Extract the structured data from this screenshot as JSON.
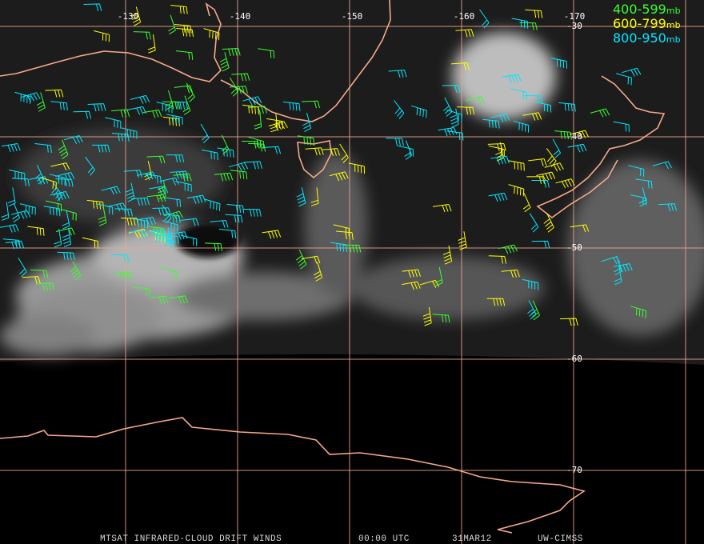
{
  "header": {
    "longitude_labels": [
      "-130",
      "-140",
      "-150",
      "-160",
      "-170"
    ],
    "latitude_labels": [
      "-30",
      "-40",
      "-50",
      "-60",
      "-70"
    ]
  },
  "legend": [
    {
      "range": "400-599",
      "unit": "mb",
      "color": "#39ff2e"
    },
    {
      "range": "600-799",
      "unit": "mb",
      "color": "#ffff00"
    },
    {
      "range": "800-950",
      "unit": "mb",
      "color": "#00e8ff"
    }
  ],
  "footer": {
    "product": "MTSAT INFRARED-CLOUD DRIFT WINDS",
    "time": "00:00 UTC",
    "date": "31MAR12",
    "source": "UW-CIMSS"
  }
}
